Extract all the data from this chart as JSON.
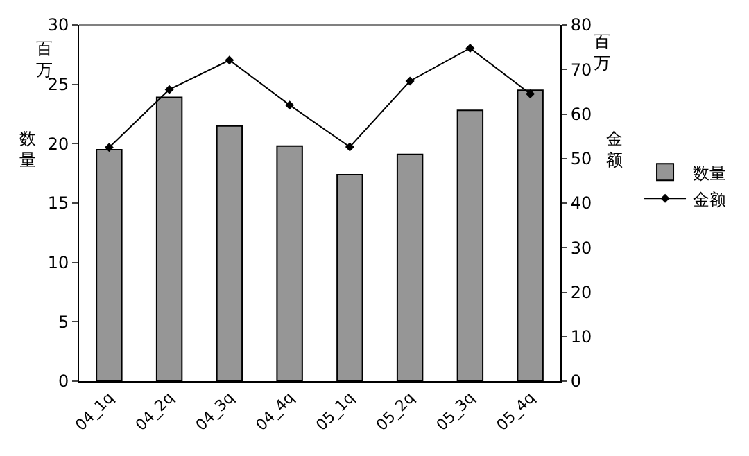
{
  "chart_data": {
    "type": "bar",
    "categories": [
      "04_1q",
      "04_2q",
      "04_3q",
      "04_4q",
      "05_1q",
      "05_2q",
      "05_3q",
      "05_4q"
    ],
    "series": [
      {
        "name": "数量",
        "color": "#969696",
        "values": [
          19.5,
          23.9,
          21.5,
          19.8,
          17.4,
          19.1,
          22.8,
          24.5
        ]
      },
      {
        "name": "金额",
        "type": "line",
        "axis": "y2",
        "color": "#000000",
        "marker": "diamond",
        "values": [
          52.5,
          65.5,
          72.1,
          62.0,
          52.6,
          67.4,
          74.8,
          64.5
        ]
      }
    ],
    "ylabel": "数量",
    "y2label": "金额",
    "annotations": [
      "百万",
      "百万"
    ],
    "ylim": [
      0,
      30
    ],
    "yticks": [
      0,
      5,
      10,
      15,
      20,
      25,
      30
    ],
    "y2lim": [
      0,
      80
    ],
    "y2ticks": [
      0,
      10,
      20,
      30,
      40,
      50,
      60,
      70,
      80
    ],
    "legend": "right"
  }
}
